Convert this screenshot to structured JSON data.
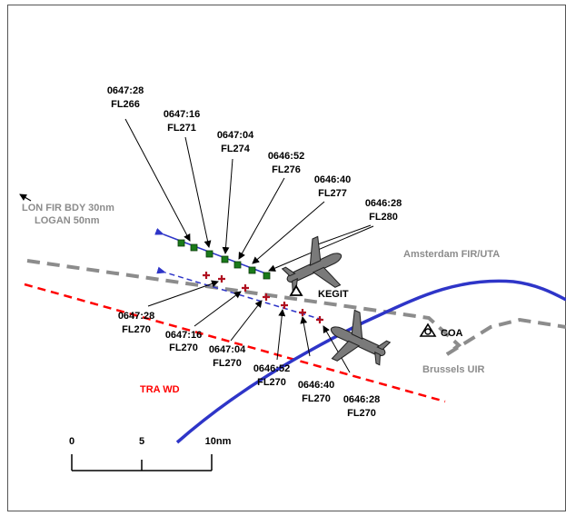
{
  "annotations": {
    "lon_fir_line1": "LON FIR BDY 30nm",
    "lon_fir_line2": "LOGAN 50nm",
    "amsterdam": "Amsterdam FIR/UTA",
    "brussels": "Brussels UIR",
    "tra": "TRA WD",
    "kegit": "KEGIT",
    "coa": "COA"
  },
  "upper_track": [
    {
      "time": "0647:28",
      "level": "FL266"
    },
    {
      "time": "0647:16",
      "level": "FL271"
    },
    {
      "time": "0647:04",
      "level": "FL274"
    },
    {
      "time": "0646:52",
      "level": "FL276"
    },
    {
      "time": "0646:40",
      "level": "FL277"
    },
    {
      "time": "0646:28",
      "level": "FL280"
    }
  ],
  "lower_track": [
    {
      "time": "0647:28",
      "level": "FL270"
    },
    {
      "time": "0647:16",
      "level": "FL270"
    },
    {
      "time": "0647:04",
      "level": "FL270"
    },
    {
      "time": "0646:52",
      "level": "FL270"
    },
    {
      "time": "0646:40",
      "level": "FL270"
    },
    {
      "time": "0646:28",
      "level": "FL270"
    }
  ],
  "scale": {
    "labels": [
      "0",
      "5",
      "10nm"
    ]
  },
  "colors": {
    "boundary_grey": "#8c8c8c",
    "tra_red": "#ff0000",
    "fir_blue": "#2e35c8",
    "track_green": "#1a7a1a",
    "track_red": "#b01020"
  }
}
